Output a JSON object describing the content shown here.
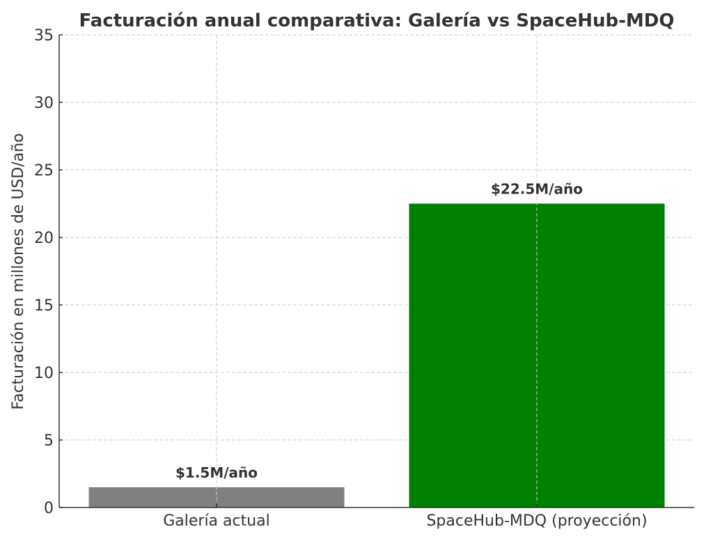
{
  "chart_data": {
    "type": "bar",
    "title": "Facturación anual comparativa: Galería vs SpaceHub-MDQ",
    "xlabel": "",
    "ylabel": "Facturación en millones de USD/año",
    "categories": [
      "Galería actual",
      "SpaceHub-MDQ (proyección)"
    ],
    "values": [
      1.5,
      22.5
    ],
    "data_labels": [
      "$1.5M/año",
      "$22.5M/año"
    ],
    "colors": [
      "#808080",
      "#008000"
    ],
    "ylim": [
      0,
      35
    ],
    "yticks": [
      0,
      5,
      10,
      15,
      20,
      25,
      30,
      35
    ],
    "grid": true,
    "legend": "none"
  }
}
